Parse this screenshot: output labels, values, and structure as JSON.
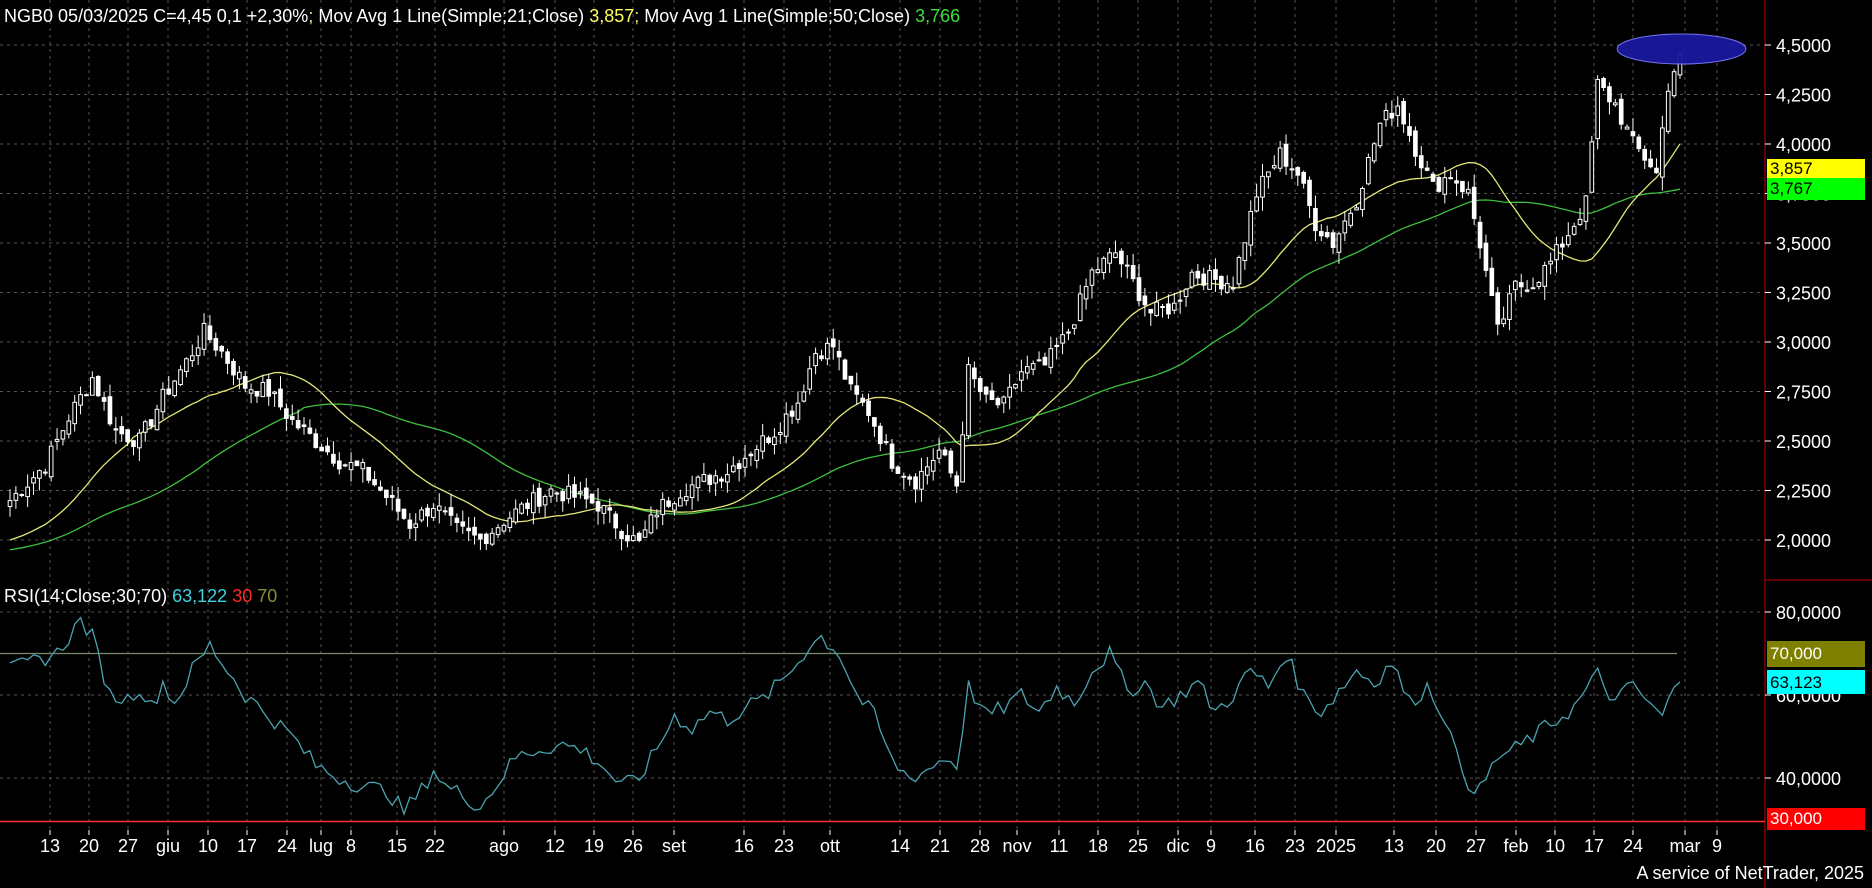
{
  "header": {
    "symbol": "NGB0",
    "date": "05/03/2025",
    "close_text": "C=4,45",
    "change": "0,1",
    "change_pct": "+2,30%",
    "ma21_label": "Mov Avg 1 Line(Simple;21;Close)",
    "ma21_value": "3,857",
    "ma50_label": "Mov Avg 1 Line(Simple;50;Close)",
    "ma50_value": "3,766",
    "separator": ";"
  },
  "rsi_header": {
    "label": "RSI(14;Close;30;70)",
    "value": "63,122",
    "lower": "30",
    "upper": "70"
  },
  "tags": {
    "ma21": "3,857",
    "ma50": "3,767",
    "rsi_upper": "70,000",
    "rsi_value": "63,123",
    "rsi_lower": "30,000"
  },
  "footer": "A service of NetTrader, 2025",
  "colors": {
    "background": "#000000",
    "grid": "#555555",
    "candle": "#ffffff",
    "ma21": "#e6e676",
    "ma50": "#3fbf3f",
    "rsi_line": "#4aa3b0",
    "rsi_band": "#7a8a6a",
    "rsi_lower_line": "#ff3030",
    "axis_separator": "#c00000",
    "highlight_ellipse": "#1a1aa0",
    "tag_yellow": "#ffff00",
    "tag_green": "#00ff00",
    "tag_olive": "#808000",
    "tag_cyan": "#00ffff",
    "tag_red": "#ff0000"
  },
  "chart_data": [
    {
      "type": "candlestick",
      "ylim": [
        1.85,
        4.6
      ],
      "y_ticks": [
        "4,5000",
        "4,2500",
        "4,0000",
        "3,7500",
        "3,5000",
        "3,2500",
        "3,0000",
        "2,7500",
        "2,5000",
        "2,2500",
        "2,0000"
      ],
      "x_ticks": [
        "13",
        "20",
        "27",
        "giu",
        "10",
        "17",
        "24",
        "lug",
        "8",
        "15",
        "22",
        "ago",
        "12",
        "19",
        "26",
        "set",
        "16",
        "23",
        "ott",
        "14",
        "21",
        "28",
        "nov",
        "11",
        "18",
        "25",
        "dic",
        "9",
        "16",
        "23",
        "2025",
        "13",
        "20",
        "27",
        "feb",
        "10",
        "17",
        "24",
        "mar",
        "9"
      ],
      "close_anchors": [
        [
          0,
          2.2
        ],
        [
          6,
          2.38
        ],
        [
          10,
          2.62
        ],
        [
          14,
          2.82
        ],
        [
          18,
          2.55
        ],
        [
          22,
          2.5
        ],
        [
          26,
          2.72
        ],
        [
          30,
          2.9
        ],
        [
          33,
          3.05
        ],
        [
          36,
          2.95
        ],
        [
          40,
          2.78
        ],
        [
          44,
          2.75
        ],
        [
          48,
          2.6
        ],
        [
          52,
          2.5
        ],
        [
          56,
          2.4
        ],
        [
          60,
          2.35
        ],
        [
          64,
          2.22
        ],
        [
          68,
          2.08
        ],
        [
          72,
          2.18
        ],
        [
          76,
          2.05
        ],
        [
          80,
          2.0
        ],
        [
          84,
          2.1
        ],
        [
          88,
          2.18
        ],
        [
          92,
          2.25
        ],
        [
          96,
          2.22
        ],
        [
          100,
          2.18
        ],
        [
          104,
          2.05
        ],
        [
          107,
          1.98
        ],
        [
          110,
          2.15
        ],
        [
          114,
          2.25
        ],
        [
          118,
          2.3
        ],
        [
          122,
          2.35
        ],
        [
          126,
          2.45
        ],
        [
          130,
          2.55
        ],
        [
          134,
          2.7
        ],
        [
          137,
          2.95
        ],
        [
          140,
          2.98
        ],
        [
          143,
          2.75
        ],
        [
          146,
          2.65
        ],
        [
          150,
          2.4
        ],
        [
          154,
          2.3
        ],
        [
          158,
          2.45
        ],
        [
          161,
          2.28
        ],
        [
          163,
          2.85
        ],
        [
          166,
          2.7
        ],
        [
          169,
          2.68
        ],
        [
          172,
          2.85
        ],
        [
          176,
          2.88
        ],
        [
          180,
          3.05
        ],
        [
          184,
          3.35
        ],
        [
          188,
          3.45
        ],
        [
          191,
          3.3
        ],
        [
          194,
          3.15
        ],
        [
          198,
          3.18
        ],
        [
          201,
          3.35
        ],
        [
          204,
          3.32
        ],
        [
          208,
          3.3
        ],
        [
          212,
          3.75
        ],
        [
          216,
          3.95
        ],
        [
          219,
          3.85
        ],
        [
          222,
          3.6
        ],
        [
          225,
          3.5
        ],
        [
          229,
          3.72
        ],
        [
          233,
          4.1
        ],
        [
          236,
          4.2
        ],
        [
          239,
          3.98
        ],
        [
          242,
          3.78
        ],
        [
          245,
          3.85
        ],
        [
          248,
          3.75
        ],
        [
          250,
          3.5
        ],
        [
          253,
          3.05
        ],
        [
          256,
          3.28
        ],
        [
          259,
          3.3
        ],
        [
          262,
          3.4
        ],
        [
          266,
          3.6
        ],
        [
          268,
          3.7
        ],
        [
          270,
          4.3
        ],
        [
          273,
          4.2
        ],
        [
          276,
          4.0
        ],
        [
          279,
          3.9
        ],
        [
          280,
          3.85
        ],
        [
          282,
          4.3
        ],
        [
          284,
          4.45
        ]
      ],
      "note_series": "OHLC daily candles plus two simple moving averages (21 and 50 periods)",
      "series": [
        {
          "name": "Mov Avg 1 Line(Simple;21;Close)",
          "last": 3.857
        },
        {
          "name": "Mov Avg 1 Line(Simple;50;Close)",
          "last": 3.766
        }
      ],
      "highlight": {
        "shape": "ellipse",
        "x_index_from": 274,
        "x_index_to": 285,
        "y": 4.49
      }
    },
    {
      "type": "line",
      "ylim": [
        27,
        86
      ],
      "y_ticks": [
        "80,0000",
        "60,0000",
        "40,0000"
      ],
      "bands": [
        30,
        70
      ],
      "series": [
        {
          "name": "RSI(14;Close;30;70)",
          "last": 63.122
        }
      ],
      "rsi_anchors": [
        [
          0,
          66
        ],
        [
          4,
          68
        ],
        [
          8,
          70
        ],
        [
          12,
          78
        ],
        [
          14,
          74
        ],
        [
          17,
          60
        ],
        [
          20,
          59
        ],
        [
          22,
          62
        ],
        [
          24,
          57
        ],
        [
          26,
          63
        ],
        [
          28,
          58
        ],
        [
          31,
          66
        ],
        [
          34,
          72
        ],
        [
          37,
          66
        ],
        [
          40,
          60
        ],
        [
          44,
          55
        ],
        [
          48,
          50
        ],
        [
          52,
          43
        ],
        [
          56,
          40
        ],
        [
          60,
          38
        ],
        [
          64,
          37
        ],
        [
          67,
          32
        ],
        [
          70,
          37
        ],
        [
          72,
          42
        ],
        [
          74,
          38
        ],
        [
          77,
          36
        ],
        [
          80,
          33
        ],
        [
          83,
          39
        ],
        [
          86,
          45
        ],
        [
          90,
          47
        ],
        [
          94,
          48
        ],
        [
          97,
          47
        ],
        [
          100,
          44
        ],
        [
          104,
          38
        ],
        [
          107,
          40
        ],
        [
          110,
          47
        ],
        [
          113,
          55
        ],
        [
          116,
          52
        ],
        [
          119,
          56
        ],
        [
          122,
          54
        ],
        [
          125,
          57
        ],
        [
          128,
          59
        ],
        [
          131,
          63
        ],
        [
          134,
          68
        ],
        [
          136,
          72
        ],
        [
          138,
          74
        ],
        [
          141,
          70
        ],
        [
          144,
          60
        ],
        [
          147,
          55
        ],
        [
          150,
          44
        ],
        [
          153,
          40
        ],
        [
          156,
          42
        ],
        [
          159,
          45
        ],
        [
          161,
          43
        ],
        [
          163,
          62
        ],
        [
          166,
          55
        ],
        [
          169,
          57
        ],
        [
          172,
          60
        ],
        [
          175,
          56
        ],
        [
          178,
          62
        ],
        [
          181,
          58
        ],
        [
          184,
          66
        ],
        [
          187,
          70
        ],
        [
          190,
          61
        ],
        [
          193,
          63
        ],
        [
          196,
          57
        ],
        [
          199,
          60
        ],
        [
          202,
          63
        ],
        [
          205,
          56
        ],
        [
          208,
          60
        ],
        [
          211,
          66
        ],
        [
          214,
          62
        ],
        [
          217,
          70
        ],
        [
          220,
          60
        ],
        [
          223,
          56
        ],
        [
          226,
          61
        ],
        [
          229,
          66
        ],
        [
          232,
          63
        ],
        [
          235,
          68
        ],
        [
          238,
          58
        ],
        [
          241,
          62
        ],
        [
          244,
          55
        ],
        [
          246,
          45
        ],
        [
          248,
          39
        ],
        [
          250,
          37
        ],
        [
          253,
          45
        ],
        [
          256,
          47
        ],
        [
          259,
          50
        ],
        [
          262,
          53
        ],
        [
          266,
          57
        ],
        [
          268,
          61
        ],
        [
          270,
          65
        ],
        [
          273,
          58
        ],
        [
          276,
          63
        ],
        [
          279,
          57
        ],
        [
          281,
          55
        ],
        [
          283,
          61
        ],
        [
          284,
          63.122
        ]
      ]
    }
  ]
}
